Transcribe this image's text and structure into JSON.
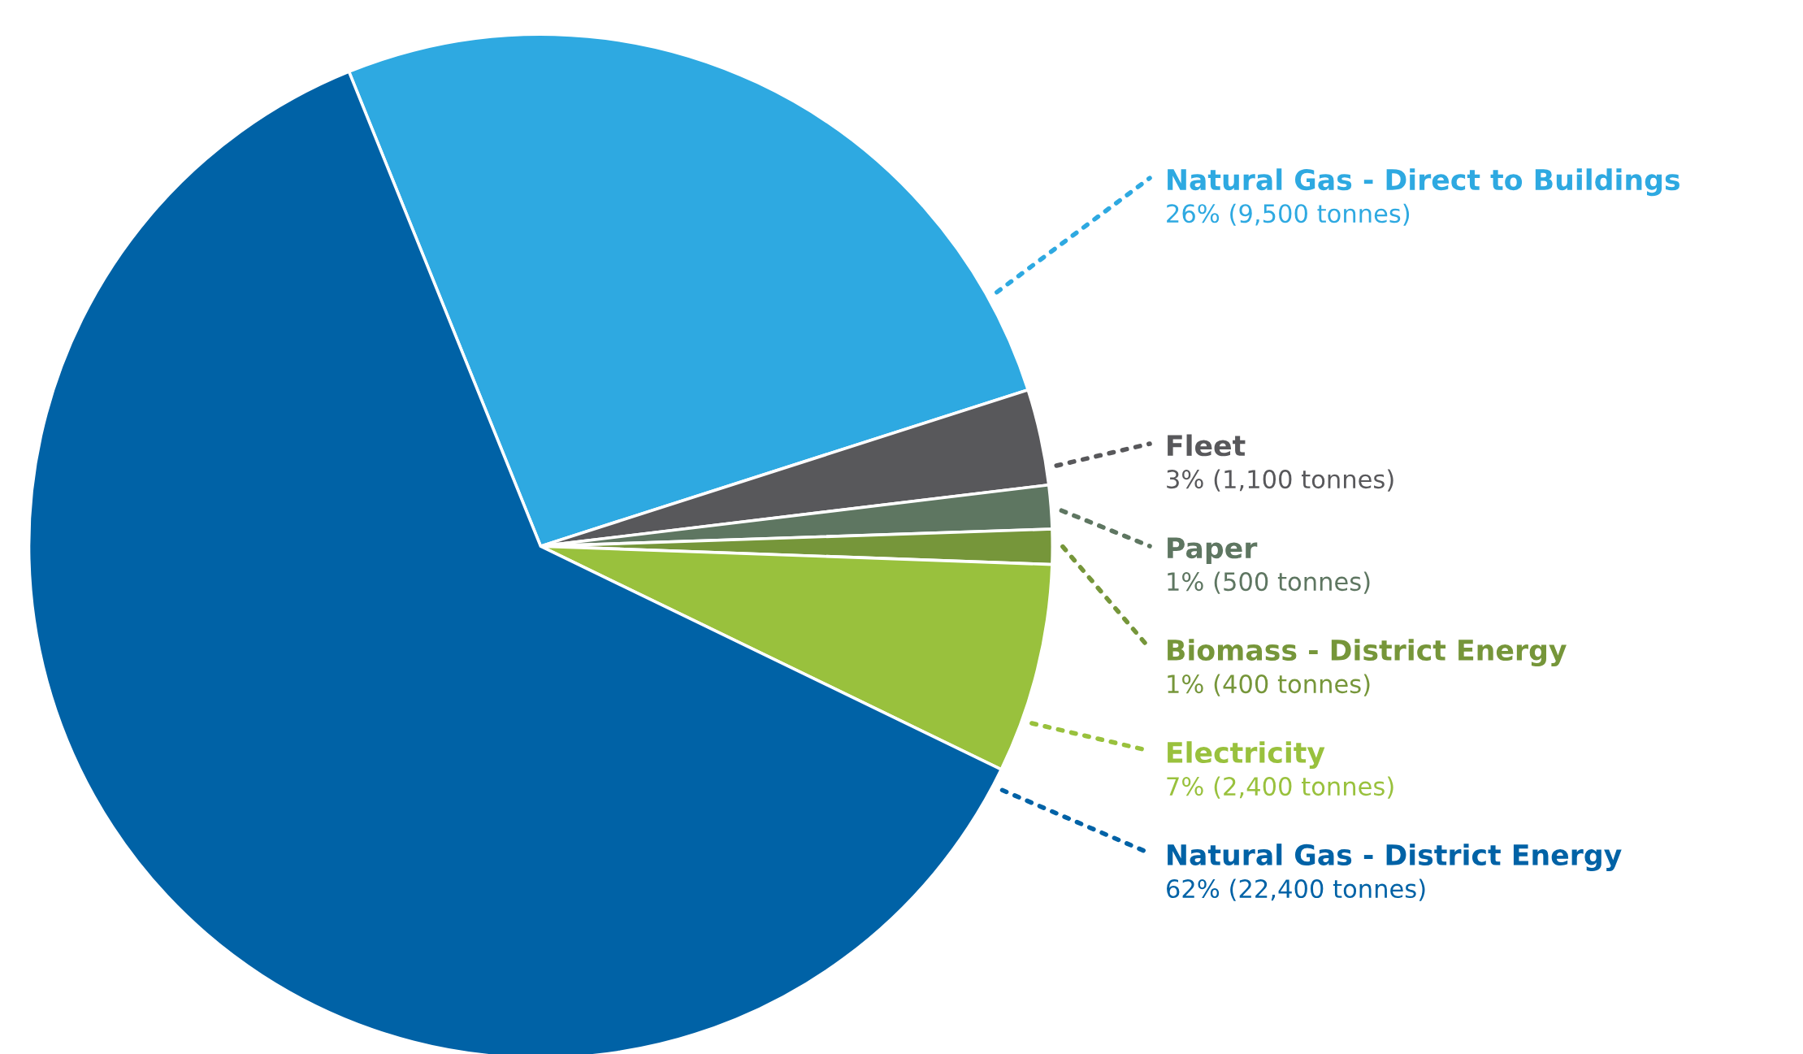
{
  "chart_data": {
    "type": "pie",
    "categories": [
      "Natural Gas - Direct to Buildings",
      "Fleet",
      "Paper",
      "Biomass - District Energy",
      "Electricity",
      "Natural Gas - District Energy"
    ],
    "values": [
      9500,
      1100,
      500,
      400,
      2400,
      22400
    ],
    "value_labels": [
      "26% (9,500 tonnes)",
      "3% (1,100 tonnes)",
      "1% (500 tonnes)",
      "1% (400 tonnes)",
      "7% (2,400 tonnes)",
      "62% (22,400 tonnes)"
    ],
    "colors": [
      "#2ea9e1",
      "#58585b",
      "#5e7661",
      "#76963a",
      "#99c13d",
      "#0062a6"
    ],
    "legend": false
  }
}
